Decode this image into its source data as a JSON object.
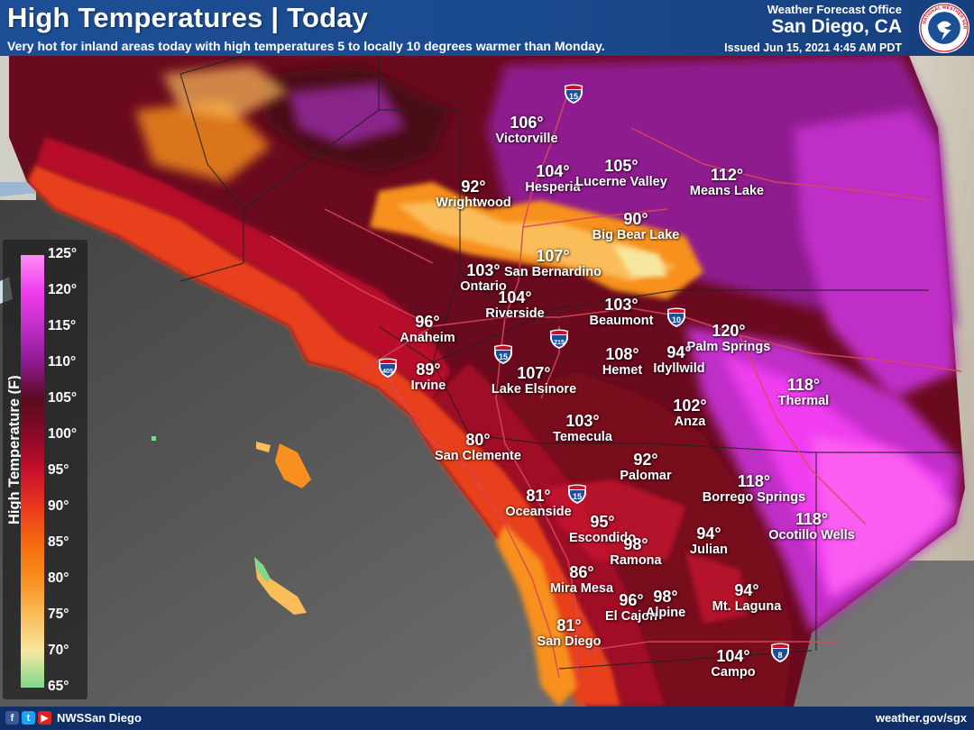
{
  "header": {
    "title": "High Temperatures | Today",
    "subtitle": "Very hot for inland areas today with high temperatures 5 to locally 10 degrees warmer than Monday.",
    "office_line1": "Weather Forecast Office",
    "office_line2": "San Diego, CA",
    "issued": "Issued Jun 15, 2021 4:45 AM PDT",
    "logo_icon": "nws-logo-icon"
  },
  "legend": {
    "title": "High Temperature (F)",
    "ticks": [
      "125°",
      "120°",
      "115°",
      "110°",
      "105°",
      "100°",
      "95°",
      "90°",
      "85°",
      "80°",
      "75°",
      "70°",
      "65°"
    ],
    "colors": [
      "#ff8cf5",
      "#f03df0",
      "#c02ec8",
      "#8e1a8e",
      "#5a0a20",
      "#8a0a28",
      "#c8102e",
      "#ea3a1e",
      "#f66a10",
      "#f7901e",
      "#fbbc5a",
      "#f6e6a0",
      "#7ed98c"
    ]
  },
  "cities": [
    {
      "name": "Victorville",
      "temp": "106°"
    },
    {
      "name": "Hesperia",
      "temp": "104°"
    },
    {
      "name": "Lucerne Valley",
      "temp": "105°"
    },
    {
      "name": "Means Lake",
      "temp": "112°"
    },
    {
      "name": "Wrightwood",
      "temp": "92°"
    },
    {
      "name": "Big Bear Lake",
      "temp": "90°"
    },
    {
      "name": "San Bernardino",
      "temp": "107°"
    },
    {
      "name": "Ontario",
      "temp": "103°"
    },
    {
      "name": "Riverside",
      "temp": "104°"
    },
    {
      "name": "Beaumont",
      "temp": "103°"
    },
    {
      "name": "Anaheim",
      "temp": "96°"
    },
    {
      "name": "Palm Springs",
      "temp": "120°"
    },
    {
      "name": "Irvine",
      "temp": "89°"
    },
    {
      "name": "Hemet",
      "temp": "108°"
    },
    {
      "name": "Idyllwild",
      "temp": "94°"
    },
    {
      "name": "Lake Elsinore",
      "temp": "107°"
    },
    {
      "name": "Thermal",
      "temp": "118°"
    },
    {
      "name": "Anza",
      "temp": "102°"
    },
    {
      "name": "Temecula",
      "temp": "103°"
    },
    {
      "name": "San Clemente",
      "temp": "80°"
    },
    {
      "name": "Palomar",
      "temp": "92°"
    },
    {
      "name": "Borrego Springs",
      "temp": "118°"
    },
    {
      "name": "Oceanside",
      "temp": "81°"
    },
    {
      "name": "Ocotillo Wells",
      "temp": "118°"
    },
    {
      "name": "Escondido",
      "temp": "95°"
    },
    {
      "name": "Ramona",
      "temp": "98°"
    },
    {
      "name": "Julian",
      "temp": "94°"
    },
    {
      "name": "Mira Mesa",
      "temp": "86°"
    },
    {
      "name": "Mt. Laguna",
      "temp": "94°"
    },
    {
      "name": "El Cajon",
      "temp": "96°"
    },
    {
      "name": "Alpine",
      "temp": "98°"
    },
    {
      "name": "San Diego",
      "temp": "81°"
    },
    {
      "name": "Campo",
      "temp": "104°"
    }
  ],
  "shields": [
    "15",
    "10",
    "215",
    "15",
    "405",
    "15",
    "8"
  ],
  "footer": {
    "handle": "NWSSan Diego",
    "website": "weather.gov/sgx",
    "icons": [
      "facebook-icon",
      "twitter-icon",
      "youtube-icon"
    ]
  }
}
